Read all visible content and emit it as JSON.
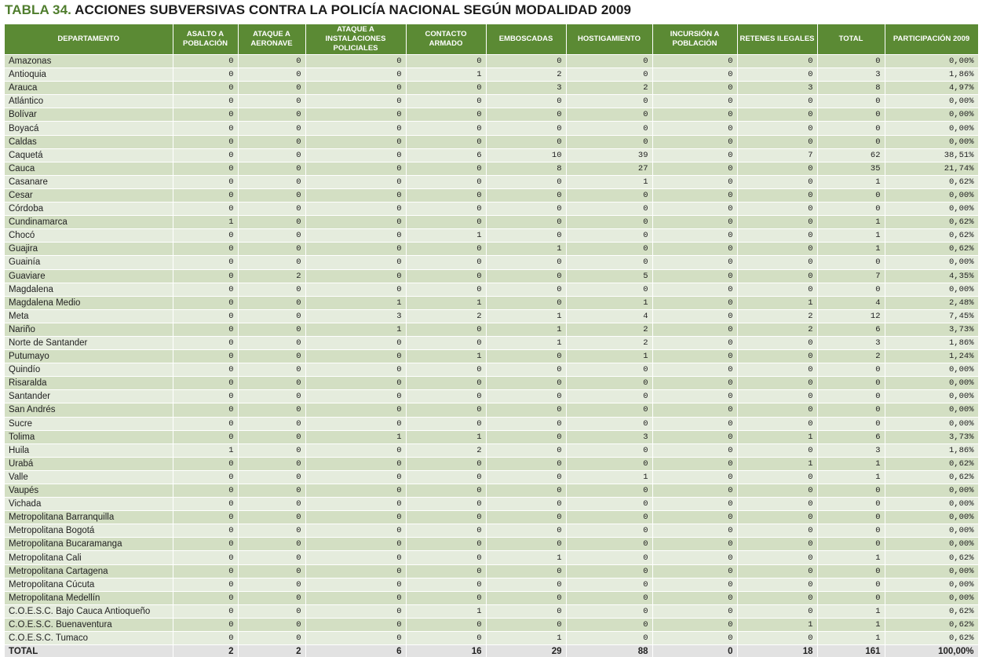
{
  "title": {
    "number": "TABLA 34.",
    "text": "ACCIONES SUBVERSIVAS CONTRA LA POLICÍA NACIONAL SEGÚN MODALIDAD 2009"
  },
  "colors": {
    "header": "#5b8a34",
    "row_dark": "#d3dfc3",
    "row_light": "#e5ecdd",
    "total_row": "#e2e2e2"
  },
  "columns": [
    "DEPARTAMENTO",
    "ASALTO A POBLACIÓN",
    "ATAQUE A AERONAVE",
    "ATAQUE A INSTALACIONES POLICIALES",
    "CONTACTO ARMADO",
    "EMBOSCADAS",
    "HOSTIGAMIENTO",
    "INCURSIÓN A POBLACIÓN",
    "RETENES ILEGALES",
    "TOTAL",
    "PARTICIPACIÓN 2009"
  ],
  "rows": [
    [
      "Amazonas",
      "0",
      "0",
      "0",
      "0",
      "0",
      "0",
      "0",
      "0",
      "0",
      "0,00%"
    ],
    [
      "Antioquia",
      "0",
      "0",
      "0",
      "1",
      "2",
      "0",
      "0",
      "0",
      "3",
      "1,86%"
    ],
    [
      "Arauca",
      "0",
      "0",
      "0",
      "0",
      "3",
      "2",
      "0",
      "3",
      "8",
      "4,97%"
    ],
    [
      "Atlántico",
      "0",
      "0",
      "0",
      "0",
      "0",
      "0",
      "0",
      "0",
      "0",
      "0,00%"
    ],
    [
      "Bolívar",
      "0",
      "0",
      "0",
      "0",
      "0",
      "0",
      "0",
      "0",
      "0",
      "0,00%"
    ],
    [
      "Boyacá",
      "0",
      "0",
      "0",
      "0",
      "0",
      "0",
      "0",
      "0",
      "0",
      "0,00%"
    ],
    [
      "Caldas",
      "0",
      "0",
      "0",
      "0",
      "0",
      "0",
      "0",
      "0",
      "0",
      "0,00%"
    ],
    [
      "Caquetá",
      "0",
      "0",
      "0",
      "6",
      "10",
      "39",
      "0",
      "7",
      "62",
      "38,51%"
    ],
    [
      "Cauca",
      "0",
      "0",
      "0",
      "0",
      "8",
      "27",
      "0",
      "0",
      "35",
      "21,74%"
    ],
    [
      "Casanare",
      "0",
      "0",
      "0",
      "0",
      "0",
      "1",
      "0",
      "0",
      "1",
      "0,62%"
    ],
    [
      "Cesar",
      "0",
      "0",
      "0",
      "0",
      "0",
      "0",
      "0",
      "0",
      "0",
      "0,00%"
    ],
    [
      "Córdoba",
      "0",
      "0",
      "0",
      "0",
      "0",
      "0",
      "0",
      "0",
      "0",
      "0,00%"
    ],
    [
      "Cundinamarca",
      "1",
      "0",
      "0",
      "0",
      "0",
      "0",
      "0",
      "0",
      "1",
      "0,62%"
    ],
    [
      "Chocó",
      "0",
      "0",
      "0",
      "1",
      "0",
      "0",
      "0",
      "0",
      "1",
      "0,62%"
    ],
    [
      "Guajira",
      "0",
      "0",
      "0",
      "0",
      "1",
      "0",
      "0",
      "0",
      "1",
      "0,62%"
    ],
    [
      "Guainía",
      "0",
      "0",
      "0",
      "0",
      "0",
      "0",
      "0",
      "0",
      "0",
      "0,00%"
    ],
    [
      "Guaviare",
      "0",
      "2",
      "0",
      "0",
      "0",
      "5",
      "0",
      "0",
      "7",
      "4,35%"
    ],
    [
      "Magdalena",
      "0",
      "0",
      "0",
      "0",
      "0",
      "0",
      "0",
      "0",
      "0",
      "0,00%"
    ],
    [
      "Magdalena Medio",
      "0",
      "0",
      "1",
      "1",
      "0",
      "1",
      "0",
      "1",
      "4",
      "2,48%"
    ],
    [
      "Meta",
      "0",
      "0",
      "3",
      "2",
      "1",
      "4",
      "0",
      "2",
      "12",
      "7,45%"
    ],
    [
      "Nariño",
      "0",
      "0",
      "1",
      "0",
      "1",
      "2",
      "0",
      "2",
      "6",
      "3,73%"
    ],
    [
      "Norte de Santander",
      "0",
      "0",
      "0",
      "0",
      "1",
      "2",
      "0",
      "0",
      "3",
      "1,86%"
    ],
    [
      "Putumayo",
      "0",
      "0",
      "0",
      "1",
      "0",
      "1",
      "0",
      "0",
      "2",
      "1,24%"
    ],
    [
      "Quindío",
      "0",
      "0",
      "0",
      "0",
      "0",
      "0",
      "0",
      "0",
      "0",
      "0,00%"
    ],
    [
      "Risaralda",
      "0",
      "0",
      "0",
      "0",
      "0",
      "0",
      "0",
      "0",
      "0",
      "0,00%"
    ],
    [
      "Santander",
      "0",
      "0",
      "0",
      "0",
      "0",
      "0",
      "0",
      "0",
      "0",
      "0,00%"
    ],
    [
      "San Andrés",
      "0",
      "0",
      "0",
      "0",
      "0",
      "0",
      "0",
      "0",
      "0",
      "0,00%"
    ],
    [
      "Sucre",
      "0",
      "0",
      "0",
      "0",
      "0",
      "0",
      "0",
      "0",
      "0",
      "0,00%"
    ],
    [
      "Tolima",
      "0",
      "0",
      "1",
      "1",
      "0",
      "3",
      "0",
      "1",
      "6",
      "3,73%"
    ],
    [
      "Huila",
      "1",
      "0",
      "0",
      "2",
      "0",
      "0",
      "0",
      "0",
      "3",
      "1,86%"
    ],
    [
      "Urabá",
      "0",
      "0",
      "0",
      "0",
      "0",
      "0",
      "0",
      "1",
      "1",
      "0,62%"
    ],
    [
      "Valle",
      "0",
      "0",
      "0",
      "0",
      "0",
      "1",
      "0",
      "0",
      "1",
      "0,62%"
    ],
    [
      "Vaupés",
      "0",
      "0",
      "0",
      "0",
      "0",
      "0",
      "0",
      "0",
      "0",
      "0,00%"
    ],
    [
      "Vichada",
      "0",
      "0",
      "0",
      "0",
      "0",
      "0",
      "0",
      "0",
      "0",
      "0,00%"
    ],
    [
      "Metropolitana Barranquilla",
      "0",
      "0",
      "0",
      "0",
      "0",
      "0",
      "0",
      "0",
      "0",
      "0,00%"
    ],
    [
      "Metropolitana Bogotá",
      "0",
      "0",
      "0",
      "0",
      "0",
      "0",
      "0",
      "0",
      "0",
      "0,00%"
    ],
    [
      "Metropolitana Bucaramanga",
      "0",
      "0",
      "0",
      "0",
      "0",
      "0",
      "0",
      "0",
      "0",
      "0,00%"
    ],
    [
      "Metropolitana Cali",
      "0",
      "0",
      "0",
      "0",
      "1",
      "0",
      "0",
      "0",
      "1",
      "0,62%"
    ],
    [
      "Metropolitana Cartagena",
      "0",
      "0",
      "0",
      "0",
      "0",
      "0",
      "0",
      "0",
      "0",
      "0,00%"
    ],
    [
      "Metropolitana Cúcuta",
      "0",
      "0",
      "0",
      "0",
      "0",
      "0",
      "0",
      "0",
      "0",
      "0,00%"
    ],
    [
      "Metropolitana Medellín",
      "0",
      "0",
      "0",
      "0",
      "0",
      "0",
      "0",
      "0",
      "0",
      "0,00%"
    ],
    [
      "C.O.E.S.C. Bajo Cauca Antioqueño",
      "0",
      "0",
      "0",
      "1",
      "0",
      "0",
      "0",
      "0",
      "1",
      "0,62%"
    ],
    [
      "C.O.E.S.C. Buenaventura",
      "0",
      "0",
      "0",
      "0",
      "0",
      "0",
      "0",
      "1",
      "1",
      "0,62%"
    ],
    [
      "C.O.E.S.C. Tumaco",
      "0",
      "0",
      "0",
      "0",
      "1",
      "0",
      "0",
      "0",
      "1",
      "0,62%"
    ]
  ],
  "total": [
    "TOTAL",
    "2",
    "2",
    "6",
    "16",
    "29",
    "88",
    "0",
    "18",
    "161",
    "100,00%"
  ]
}
